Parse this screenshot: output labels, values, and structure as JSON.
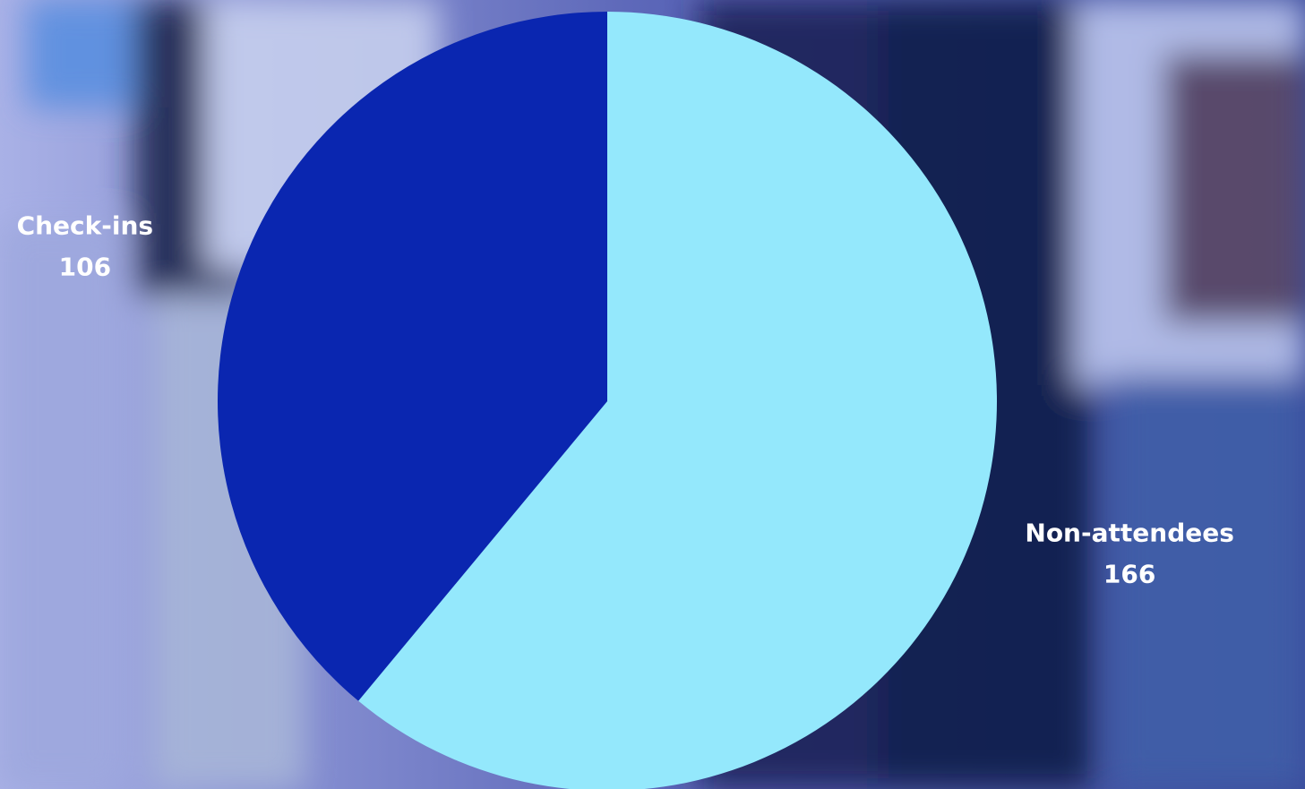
{
  "chart_data": {
    "type": "pie",
    "categories": [
      "Non-attendees",
      "Check-ins"
    ],
    "values": [
      166,
      106
    ],
    "colors": [
      "#94e8fc",
      "#0a26b0"
    ]
  }
}
